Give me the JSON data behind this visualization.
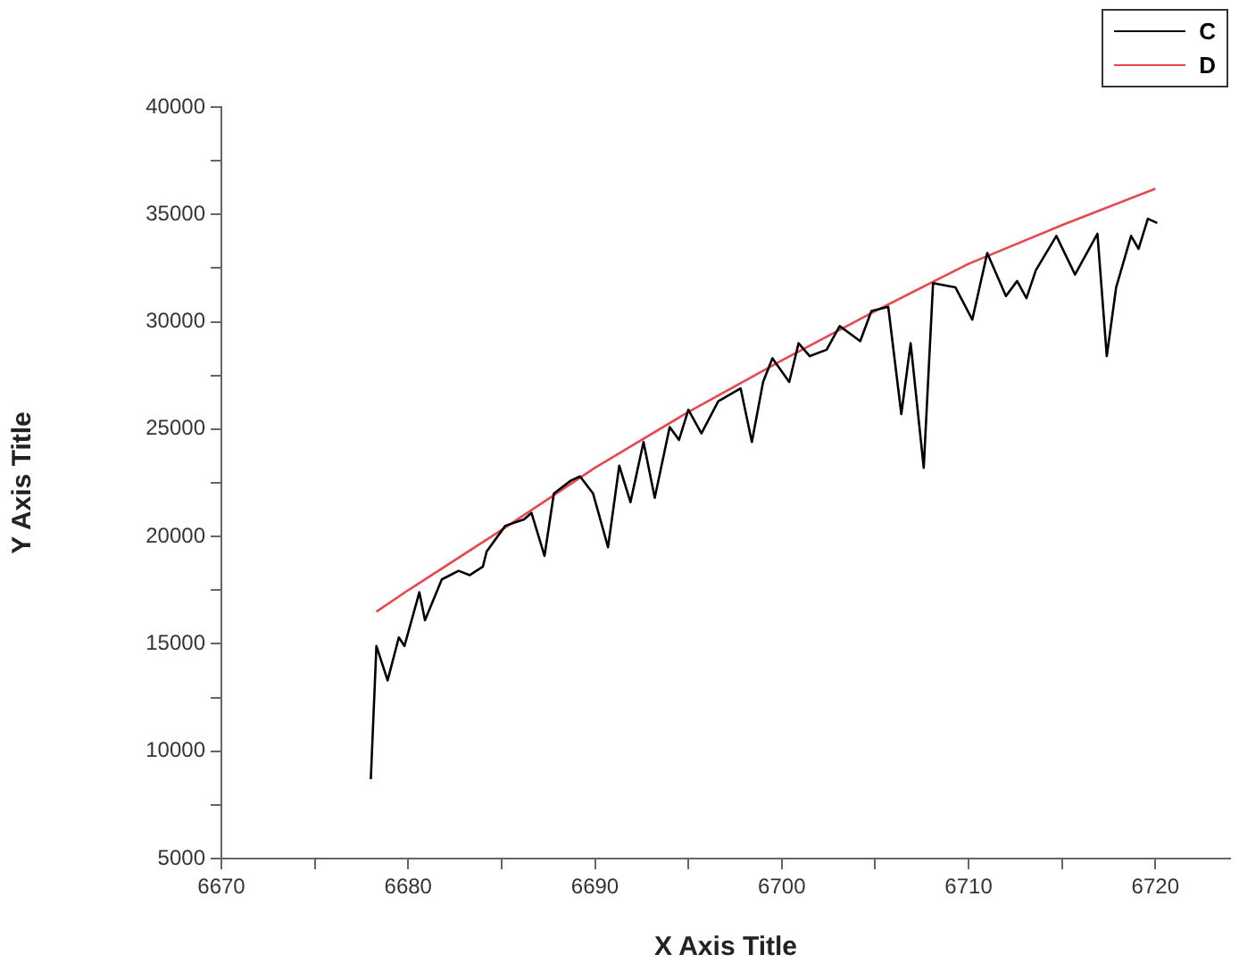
{
  "chart_data": {
    "type": "line",
    "xlabel": "X Axis Title",
    "ylabel": "Y Axis Title",
    "xlim": [
      6670,
      6724
    ],
    "xticks": [
      6670,
      {
        "value": 6675,
        "label": null
      },
      6680,
      {
        "value": 6685,
        "label": null
      },
      6690,
      {
        "value": 6695,
        "label": null
      },
      6700,
      {
        "value": 6705,
        "label": null
      },
      6710,
      {
        "value": 6715,
        "label": null
      },
      6720
    ],
    "ylim": [
      5000,
      40000
    ],
    "yticks": [
      5000,
      {
        "value": 7500,
        "label": null
      },
      10000,
      {
        "value": 12500,
        "label": null
      },
      15000,
      {
        "value": 17500,
        "label": null
      },
      20000,
      {
        "value": 22500,
        "label": null
      },
      25000,
      {
        "value": 27500,
        "label": null
      },
      30000,
      {
        "value": 32500,
        "label": null
      },
      35000,
      {
        "value": 37500,
        "label": null
      },
      40000
    ],
    "grid": false,
    "legend": "top right",
    "marker": "none",
    "line_style": "solid",
    "series": [
      {
        "name": "C",
        "color": "#000000",
        "x": [
          6678.0,
          6678.3,
          6678.9,
          6679.5,
          6679.8,
          6680.6,
          6680.9,
          6681.8,
          6682.7,
          6683.3,
          6684.0,
          6684.2,
          6685.2,
          6686.2,
          6686.6,
          6687.3,
          6687.8,
          6688.7,
          6689.2,
          6689.9,
          6690.7,
          6691.3,
          6691.9,
          6692.6,
          6693.2,
          6694.0,
          6694.5,
          6695.0,
          6695.7,
          6696.6,
          6697.8,
          6698.4,
          6699.0,
          6699.5,
          6700.4,
          6700.9,
          6701.5,
          6702.4,
          6703.1,
          6704.2,
          6704.8,
          6705.7,
          6706.4,
          6706.9,
          6707.6,
          6708.1,
          6709.3,
          6710.2,
          6711.0,
          6712.0,
          6712.6,
          6713.1,
          6713.6,
          6714.7,
          6715.7,
          6716.9,
          6717.4,
          6717.9,
          6718.7,
          6719.1,
          6719.6,
          6720.1
        ],
        "values": [
          8700,
          14900,
          13300,
          15300,
          14900,
          17400,
          16100,
          18000,
          18400,
          18200,
          18600,
          19300,
          20500,
          20800,
          21100,
          19100,
          22000,
          22600,
          22800,
          22000,
          19500,
          23300,
          21600,
          24400,
          21800,
          25100,
          24500,
          25900,
          24800,
          26300,
          26900,
          24400,
          27200,
          28300,
          27200,
          29000,
          28400,
          28700,
          29800,
          29100,
          30500,
          30700,
          25700,
          29000,
          23200,
          31800,
          31600,
          30100,
          33200,
          31200,
          31900,
          31100,
          32400,
          34000,
          32200,
          34100,
          28400,
          31600,
          34000,
          33400,
          34800,
          34600
        ]
      },
      {
        "name": "D",
        "color": "#e8474f",
        "x": [
          6678.3,
          6680,
          6685,
          6690,
          6695,
          6700,
          6705,
          6710,
          6715,
          6720
        ],
        "values": [
          16500,
          17500,
          20300,
          23200,
          25800,
          28200,
          30500,
          32700,
          34500,
          36200
        ]
      }
    ]
  }
}
